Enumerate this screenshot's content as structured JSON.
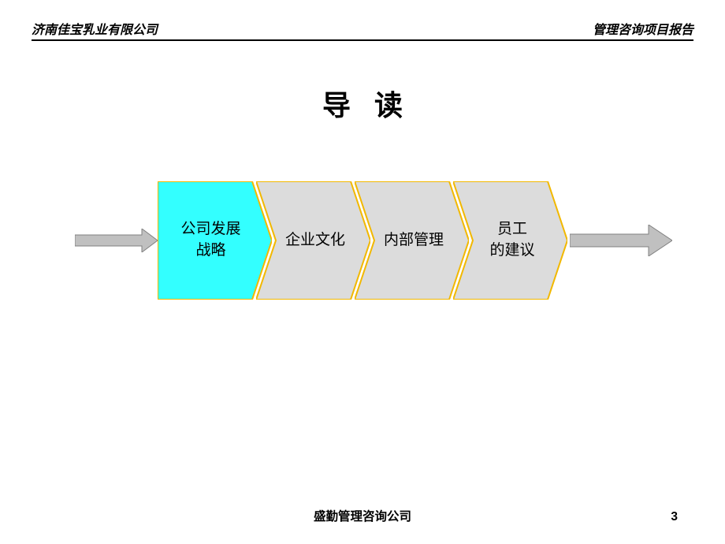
{
  "header": {
    "left": "济南佳宝乳业有限公司",
    "right": "管理咨询项目报告"
  },
  "title": "导读",
  "flow": {
    "steps": [
      {
        "label": "公司发展\n战略",
        "fill": "#33ffff",
        "active": true
      },
      {
        "label": "企业文化",
        "fill": "#dcdcdc",
        "active": false
      },
      {
        "label": "内部管理",
        "fill": "#dcdcdc",
        "active": false
      },
      {
        "label": "员工\n的建议",
        "fill": "#dcdcdc",
        "active": false
      }
    ],
    "step_width": 145,
    "step_height": 150,
    "step_overlap": 20,
    "chevron_stroke": "#f2b800",
    "chevron_stroke_width": 2,
    "arrow_fill": "#c0c0c0",
    "arrow_stroke": "#808080",
    "label_fontsize": 19
  },
  "footer": {
    "company": "盛勤管理咨询公司",
    "page": "3"
  },
  "colors": {
    "background": "#ffffff",
    "text": "#000000",
    "rule": "#000000"
  }
}
